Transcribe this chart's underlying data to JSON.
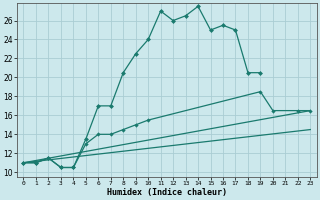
{
  "xlabel": "Humidex (Indice chaleur)",
  "background_color": "#cce8ec",
  "grid_color": "#aacdd4",
  "line_color": "#1a7a6e",
  "xlim": [
    -0.5,
    23.5
  ],
  "ylim": [
    9.5,
    27.8
  ],
  "xticks": [
    0,
    1,
    2,
    3,
    4,
    5,
    6,
    7,
    8,
    9,
    10,
    11,
    12,
    13,
    14,
    15,
    16,
    17,
    18,
    19,
    20,
    21,
    22,
    23
  ],
  "yticks": [
    10,
    12,
    14,
    16,
    18,
    20,
    22,
    24,
    26
  ],
  "series1_x": [
    0,
    1,
    2,
    3,
    4,
    5,
    6,
    7,
    8,
    9,
    10,
    11,
    12,
    13,
    14,
    15,
    16,
    17,
    18,
    19
  ],
  "series1_y": [
    11,
    11,
    11.5,
    10.5,
    10.5,
    13.5,
    17,
    17,
    20.5,
    22.5,
    24,
    27,
    26,
    26.5,
    27.5,
    25,
    25.5,
    25,
    20.5,
    20.5
  ],
  "series2_x": [
    0,
    1,
    2,
    3,
    4,
    5,
    6,
    7,
    8,
    9,
    10,
    19,
    20,
    22,
    23
  ],
  "series2_y": [
    11,
    11,
    11.5,
    10.5,
    10.5,
    13,
    14,
    14,
    14.5,
    15,
    15.5,
    18.5,
    16.5,
    16.5,
    16.5
  ],
  "series3_x": [
    0,
    23
  ],
  "series3_y": [
    11,
    16.5
  ],
  "series4_x": [
    0,
    23
  ],
  "series4_y": [
    11,
    14.5
  ]
}
